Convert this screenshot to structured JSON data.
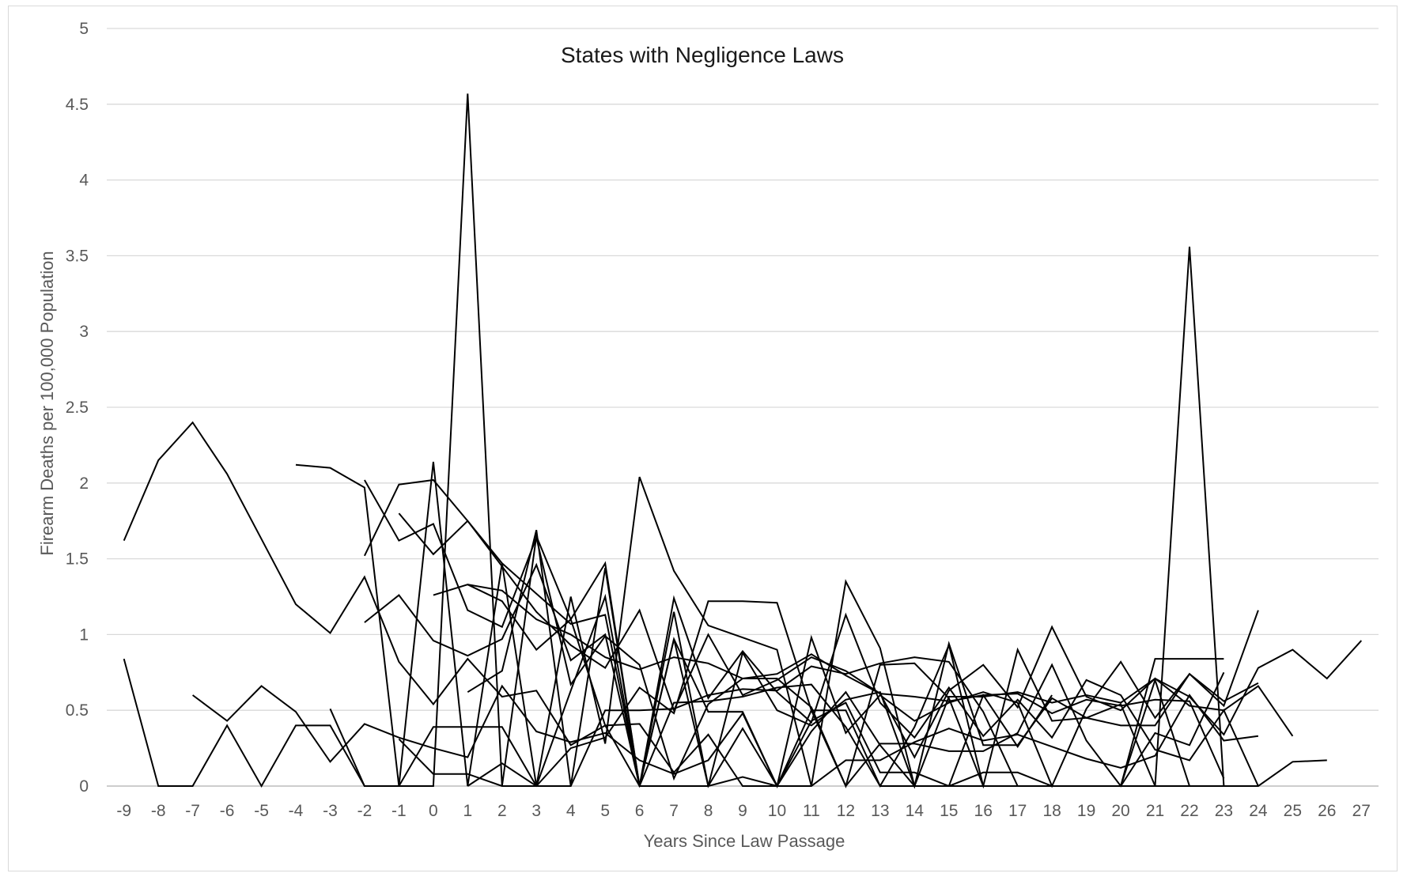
{
  "chart_data": {
    "type": "line",
    "title": "States with Negligence Laws",
    "xlabel": "Years Since Law Passage",
    "ylabel": "Firearm Deaths per 100,000 Population",
    "xlim": [
      -9,
      27
    ],
    "ylim": [
      0,
      5
    ],
    "x_ticks": [
      -9,
      -8,
      -7,
      -6,
      -5,
      -4,
      -3,
      -2,
      -1,
      0,
      1,
      2,
      3,
      4,
      5,
      6,
      7,
      8,
      9,
      10,
      11,
      12,
      13,
      14,
      15,
      16,
      17,
      18,
      19,
      20,
      21,
      22,
      23,
      24,
      25,
      26,
      27
    ],
    "y_ticks": [
      0,
      0.5,
      1,
      1.5,
      2,
      2.5,
      3,
      3.5,
      4,
      4.5,
      5
    ],
    "y_tick_labels": [
      "0",
      "0.5",
      "1",
      "1.5",
      "2",
      "2.5",
      "3",
      "3.5",
      "4",
      "4.5",
      "5"
    ],
    "grid": "horizontal",
    "legend": "none",
    "line_color": "#000000",
    "grid_color": "#d9d9d9",
    "series": [
      {
        "x": [
          -9,
          -8,
          -7,
          -6,
          -5,
          -4,
          -3,
          -2,
          -1,
          0,
          1,
          2,
          3,
          4,
          5,
          6,
          7,
          8,
          9,
          10,
          11,
          12,
          13,
          14,
          15,
          16,
          17,
          18,
          19,
          20,
          21,
          22,
          23
        ],
        "values": [
          1.62,
          2.15,
          2.4,
          2.06,
          1.63,
          1.2,
          1.01,
          1.38,
          0.82,
          0.54,
          0.84,
          0.59,
          0.63,
          0.27,
          0.4,
          0.41,
          0.09,
          0.34,
          0.0,
          0.0,
          0.43,
          0.55,
          0.09,
          0.09,
          0.0,
          0.09,
          0.09,
          0.0,
          0.0,
          0.0,
          0.84,
          0.84,
          0.84
        ]
      },
      {
        "x": [
          -9,
          -8,
          -7,
          -6,
          -5,
          -4,
          -3,
          -2,
          -1,
          0,
          1,
          2,
          3,
          4,
          5,
          6,
          7,
          8,
          9,
          10,
          11,
          12,
          13,
          14,
          15,
          16,
          17,
          18,
          19,
          20,
          21,
          22,
          23
        ],
        "values": [
          0.84,
          0.0,
          0.0,
          0.4,
          0.0,
          0.4,
          0.4,
          0.0,
          0.0,
          0.39,
          0.39,
          0.39,
          0.0,
          0.0,
          0.5,
          0.5,
          0.51,
          0.6,
          0.64,
          0.63,
          0.79,
          0.74,
          0.81,
          0.85,
          0.82,
          0.49,
          0.0,
          0.0,
          0.0,
          0.0,
          0.0,
          3.56,
          0.0
        ]
      },
      {
        "x": [
          -7,
          -6,
          -5,
          -4,
          -3,
          -2,
          -1,
          0,
          1,
          2,
          3,
          4,
          5,
          6,
          7,
          8,
          9,
          10,
          11,
          12,
          13,
          14,
          15,
          16,
          17,
          18,
          19,
          20,
          21,
          22,
          23,
          24
        ],
        "values": [
          0.6,
          0.43,
          0.66,
          0.49,
          0.16,
          0.41,
          0.32,
          0.25,
          0.19,
          0.66,
          0.36,
          0.29,
          0.35,
          0.17,
          0.08,
          0.17,
          0.48,
          0.0,
          0.0,
          0.17,
          0.17,
          0.29,
          0.38,
          0.3,
          0.34,
          0.26,
          0.18,
          0.12,
          0.2,
          0.6,
          0.3,
          0.33
        ]
      },
      {
        "x": [
          -4,
          -3,
          -2,
          -1,
          0,
          1,
          2,
          3,
          4,
          5,
          6,
          7,
          8,
          9,
          10,
          11,
          12,
          13,
          14,
          15,
          16,
          17,
          18,
          19,
          20,
          21,
          22,
          23,
          24,
          25,
          26
        ],
        "values": [
          2.12,
          2.1,
          1.97,
          0.0,
          0.0,
          4.57,
          0.0,
          1.65,
          1.1,
          1.47,
          0.0,
          0.97,
          0.0,
          0.88,
          0.5,
          0.4,
          0.57,
          0.62,
          0.0,
          0.94,
          0.27,
          0.27,
          0.58,
          0.45,
          0.54,
          0.0,
          0.0,
          0.0,
          0.0,
          0.16,
          0.17
        ]
      },
      {
        "x": [
          -3,
          -2,
          -1,
          0,
          1,
          2,
          3,
          4,
          5,
          6,
          7,
          8,
          9,
          10,
          11,
          12,
          13,
          14,
          15,
          16,
          17,
          18,
          19,
          20,
          21,
          22,
          23,
          24,
          25,
          26,
          27
        ],
        "values": [
          0.51,
          0.0,
          0.0,
          2.14,
          0.0,
          1.47,
          0.0,
          1.25,
          0.28,
          2.04,
          1.42,
          1.06,
          0.98,
          0.9,
          0.0,
          1.35,
          0.91,
          0.0,
          0.59,
          0.59,
          0.62,
          0.55,
          0.6,
          0.55,
          0.71,
          0.59,
          0.34,
          0.78,
          0.9,
          0.71,
          0.96
        ]
      },
      {
        "x": [
          -2,
          -1,
          0,
          1,
          2,
          3,
          4,
          5,
          6,
          7,
          8,
          9,
          10,
          11,
          12,
          13,
          14,
          15,
          16,
          17,
          18,
          19,
          20,
          21,
          22,
          23,
          24,
          25
        ],
        "values": [
          1.52,
          1.99,
          2.02,
          1.75,
          1.45,
          1.15,
          0.93,
          0.78,
          1.16,
          0.5,
          1.0,
          0.6,
          0.7,
          0.85,
          0.76,
          0.61,
          0.19,
          0.63,
          0.8,
          0.52,
          1.05,
          0.59,
          0.5,
          0.71,
          0.53,
          0.5,
          0.66,
          0.33
        ]
      },
      {
        "x": [
          -2,
          -1,
          0,
          1,
          2,
          3,
          4,
          5,
          6,
          7,
          8,
          9,
          10,
          11,
          12,
          13,
          14,
          15,
          16,
          17,
          18,
          19,
          20,
          21,
          22,
          23,
          24
        ],
        "values": [
          2.02,
          1.62,
          1.73,
          1.16,
          1.05,
          1.64,
          0.67,
          0.99,
          0.8,
          0.05,
          0.54,
          0.71,
          0.71,
          0.52,
          0.0,
          0.8,
          0.81,
          0.58,
          0.0,
          0.9,
          0.43,
          0.45,
          0.4,
          0.4,
          0.74,
          0.56,
          0.68
        ]
      },
      {
        "x": [
          -2,
          -1,
          0,
          1,
          2,
          3,
          4,
          5,
          6,
          7,
          8,
          9,
          10,
          11,
          12,
          13,
          14,
          15,
          16,
          17,
          18,
          19,
          20,
          21,
          22,
          23,
          24
        ],
        "values": [
          1.08,
          1.26,
          0.96,
          0.86,
          0.97,
          1.46,
          0.83,
          1.0,
          0.0,
          0.97,
          0.49,
          0.49,
          0.0,
          0.98,
          0.35,
          0.6,
          0.43,
          0.55,
          0.62,
          0.55,
          0.0,
          0.51,
          0.82,
          0.45,
          0.74,
          0.53,
          1.16
        ]
      },
      {
        "x": [
          -1,
          0,
          1,
          2,
          3,
          4,
          5,
          6,
          7,
          8,
          9,
          10,
          11,
          12,
          13,
          14,
          15,
          16,
          17,
          18,
          19,
          20,
          21,
          22,
          23,
          24
        ],
        "values": [
          1.8,
          1.53,
          1.75,
          1.47,
          1.27,
          1.07,
          1.13,
          0.0,
          1.24,
          0.58,
          0.89,
          0.62,
          0.42,
          1.13,
          0.55,
          0.32,
          0.65,
          0.33,
          0.57,
          0.32,
          0.7,
          0.6,
          0.24,
          0.17,
          0.5,
          0.0
        ]
      },
      {
        "x": [
          0,
          1,
          2,
          3,
          4,
          5,
          6,
          7,
          8,
          9,
          10,
          11,
          12,
          13,
          14,
          15,
          16,
          17,
          18,
          19,
          20,
          21,
          22,
          23
        ],
        "values": [
          1.26,
          1.33,
          1.29,
          1.1,
          1.0,
          0.85,
          0.77,
          0.85,
          0.81,
          0.71,
          0.74,
          0.87,
          0.73,
          0.61,
          0.59,
          0.56,
          0.6,
          0.61,
          0.48,
          0.57,
          0.53,
          0.57,
          0.56,
          0.05
        ]
      },
      {
        "x": [
          1,
          2,
          3,
          4,
          5,
          6,
          7,
          8,
          9,
          10,
          11,
          12,
          13,
          14,
          15,
          16,
          17,
          18,
          19,
          20,
          21,
          22,
          23
        ],
        "values": [
          0.62,
          0.76,
          1.69,
          0.0,
          1.44,
          0.0,
          1.15,
          0.0,
          0.38,
          0.0,
          0.5,
          0.0,
          0.28,
          0.28,
          0.23,
          0.23,
          0.35,
          0.8,
          0.3,
          0.0,
          0.35,
          0.27,
          0.75
        ]
      },
      {
        "x": [
          1,
          2,
          3,
          4,
          5,
          6,
          7,
          8,
          9,
          10,
          11,
          12,
          13,
          14,
          15,
          16,
          17,
          18,
          19,
          20
        ],
        "values": [
          0.0,
          0.15,
          0.0,
          0.25,
          0.32,
          0.65,
          0.48,
          1.22,
          1.22,
          1.21,
          0.5,
          0.5,
          0.0,
          0.0,
          0.0,
          0.0,
          0.0,
          0.0,
          0.0,
          0.0
        ]
      },
      {
        "x": [
          -1,
          0,
          1,
          2,
          3,
          4,
          5,
          6,
          7,
          8,
          9,
          10,
          11,
          12,
          13,
          14,
          15,
          16,
          17,
          18
        ],
        "values": [
          0.31,
          0.08,
          0.08,
          0.0,
          0.0,
          0.63,
          1.25,
          0.0,
          0.0,
          0.0,
          0.06,
          0.0,
          0.36,
          0.62,
          0.27,
          0.0,
          0.0,
          0.6,
          0.26,
          0.6
        ]
      },
      {
        "x": [
          1,
          2,
          3,
          4,
          5,
          6,
          7,
          8,
          9,
          10,
          11,
          12,
          13,
          14,
          15,
          16,
          17,
          18,
          19,
          20,
          21,
          22,
          23
        ],
        "values": [
          1.33,
          1.22,
          0.9,
          1.1,
          0.4,
          0.0,
          0.55,
          0.56,
          0.59,
          0.65,
          0.67,
          0.39,
          0.0,
          0.39,
          0.93,
          0.0,
          0.0,
          0.0,
          0.0,
          0.0,
          0.7,
          0.0,
          0.0
        ]
      }
    ]
  }
}
